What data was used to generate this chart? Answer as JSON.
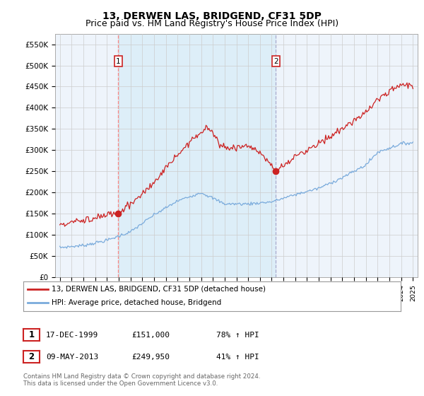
{
  "title": "13, DERWEN LAS, BRIDGEND, CF31 5DP",
  "subtitle": "Price paid vs. HM Land Registry's House Price Index (HPI)",
  "ylim": [
    0,
    575000
  ],
  "yticks": [
    0,
    50000,
    100000,
    150000,
    200000,
    250000,
    300000,
    350000,
    400000,
    450000,
    500000,
    550000
  ],
  "ytick_labels": [
    "£0",
    "£50K",
    "£100K",
    "£150K",
    "£200K",
    "£250K",
    "£300K",
    "£350K",
    "£400K",
    "£450K",
    "£500K",
    "£550K"
  ],
  "sale1_year": 1999.958,
  "sale1_price": 151000,
  "sale2_year": 2013.36,
  "sale2_price": 249950,
  "line_color_house": "#cc2222",
  "line_color_hpi": "#7aabdc",
  "marker_color": "#cc2222",
  "vline1_color": "#ff8888",
  "vline2_color": "#aaaacc",
  "grid_color": "#cccccc",
  "shade_color": "#ddeeff",
  "background_color": "#ffffff",
  "legend_house": "13, DERWEN LAS, BRIDGEND, CF31 5DP (detached house)",
  "legend_hpi": "HPI: Average price, detached house, Bridgend",
  "table_row1": [
    "1",
    "17-DEC-1999",
    "£151,000",
    "78% ↑ HPI"
  ],
  "table_row2": [
    "2",
    "09-MAY-2013",
    "£249,950",
    "41% ↑ HPI"
  ],
  "footnote": "Contains HM Land Registry data © Crown copyright and database right 2024.\nThis data is licensed under the Open Government Licence v3.0.",
  "title_fontsize": 10,
  "subtitle_fontsize": 9
}
